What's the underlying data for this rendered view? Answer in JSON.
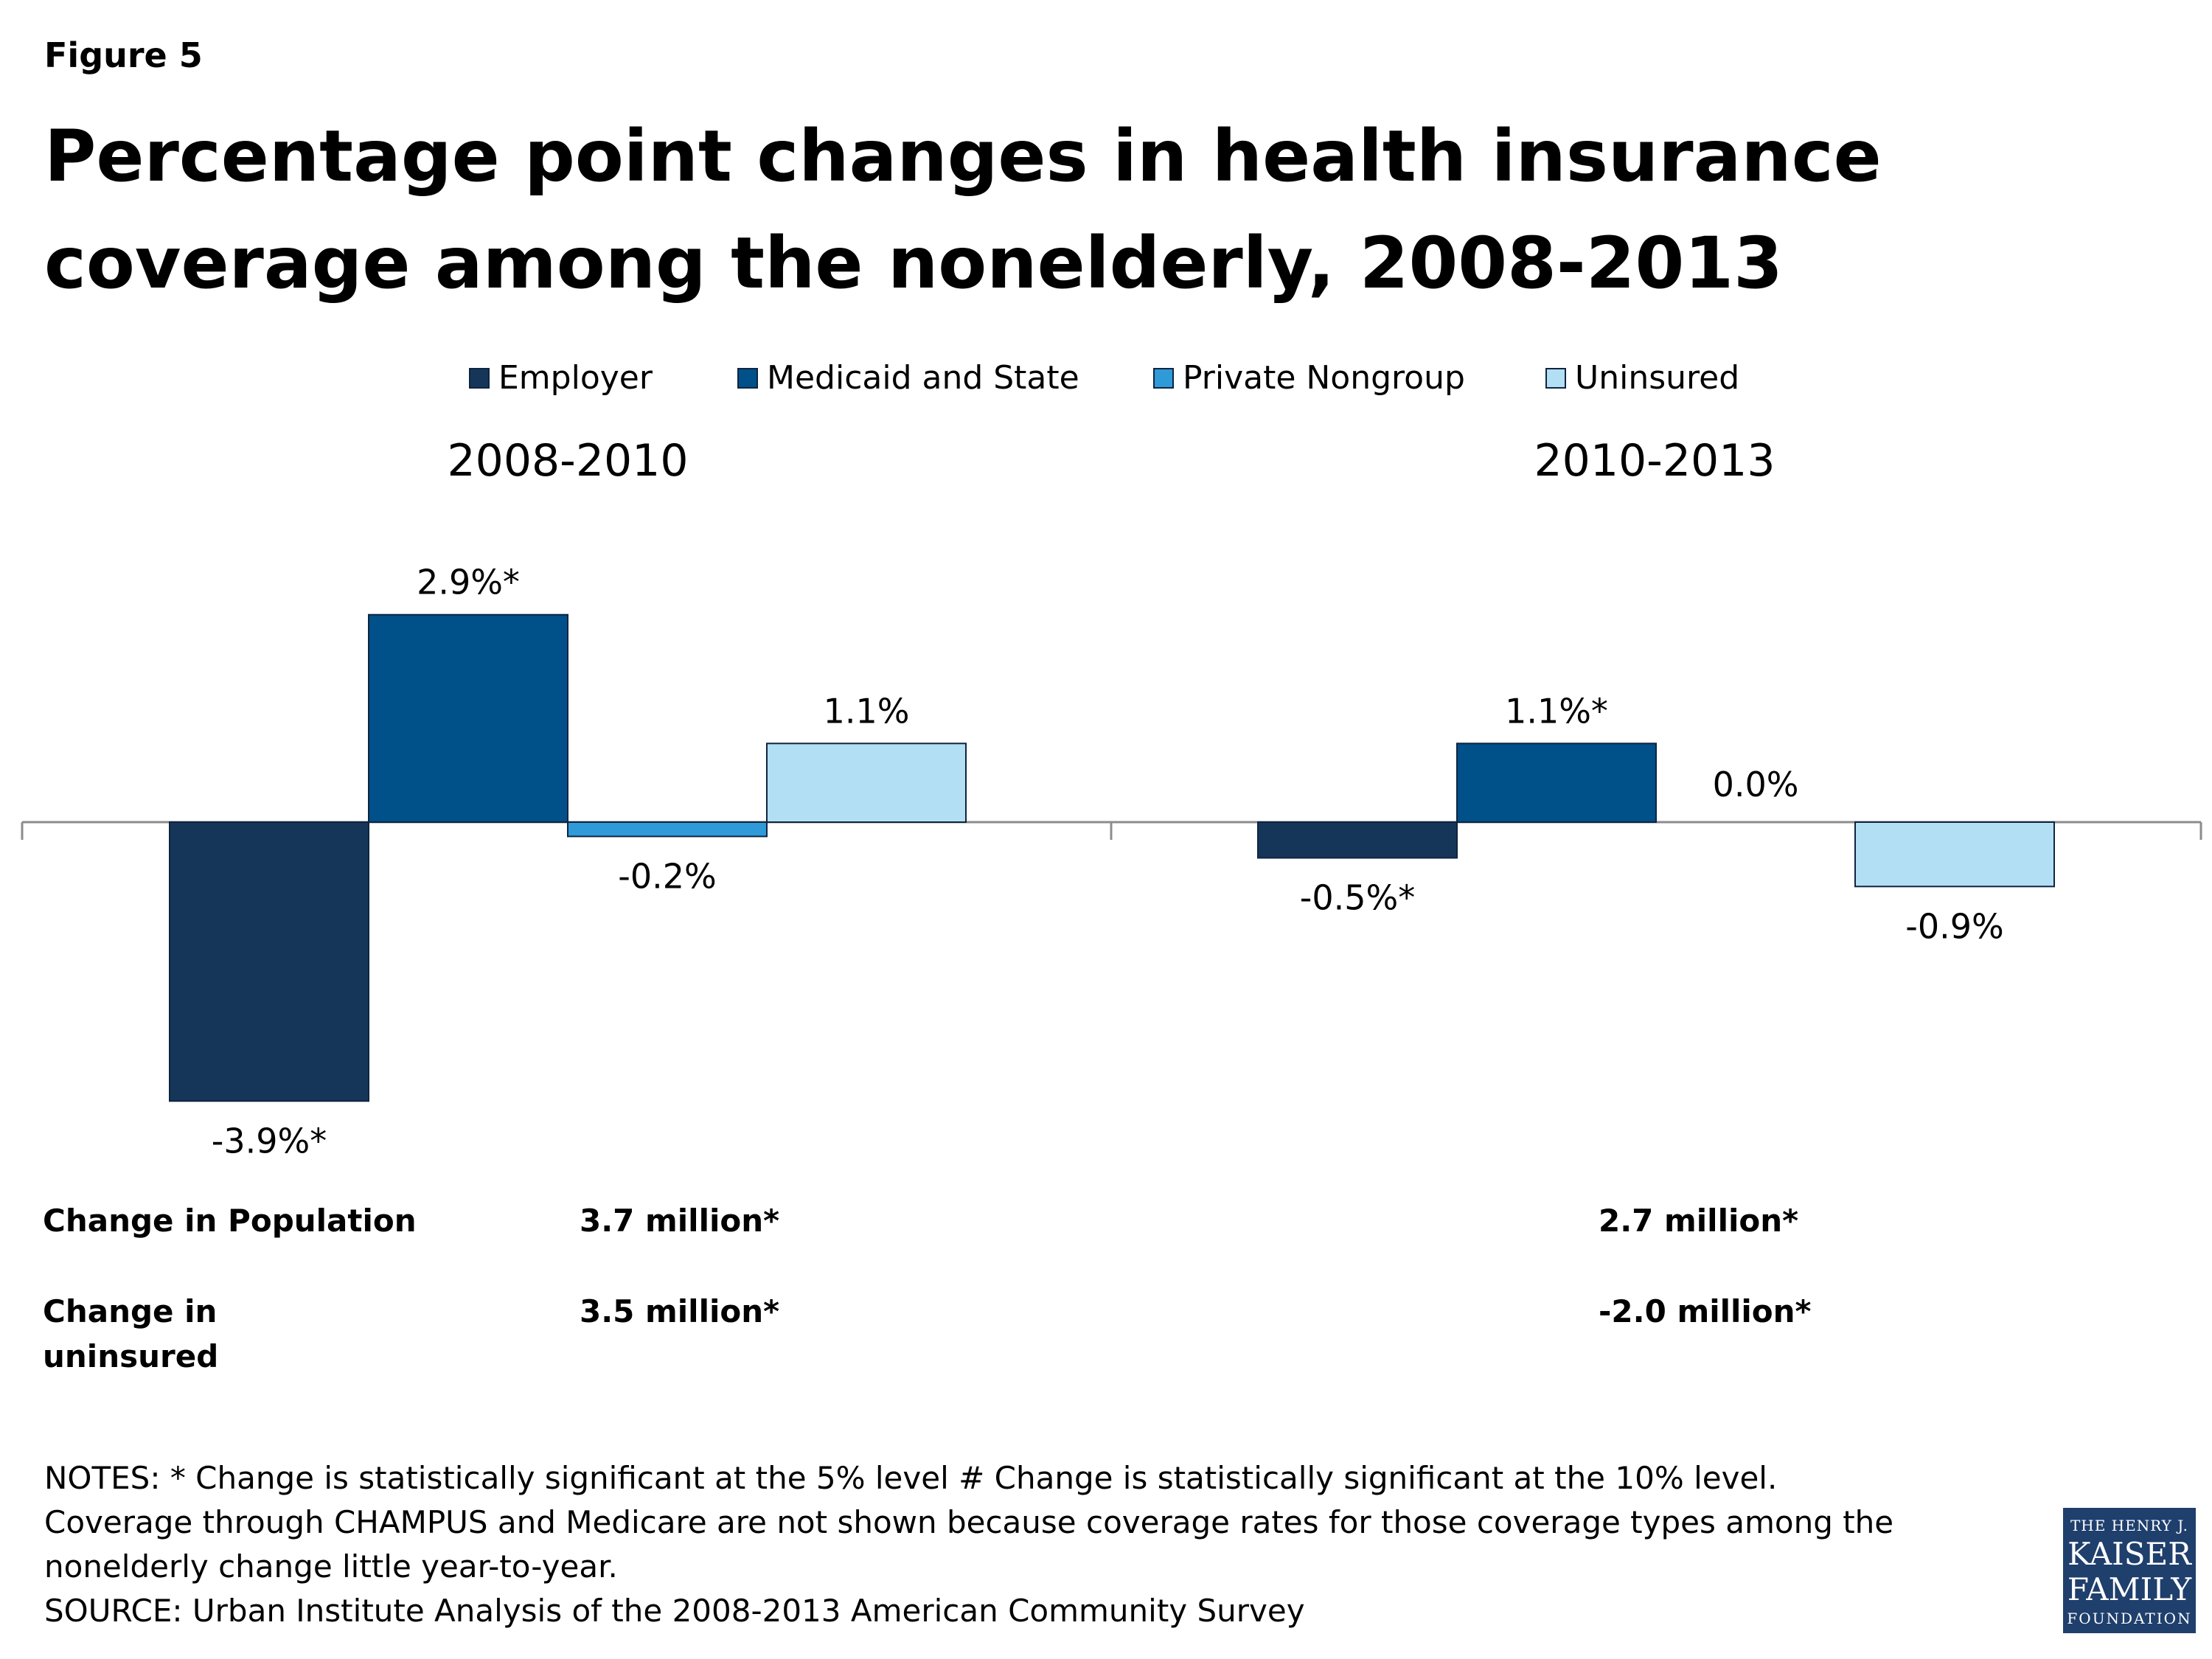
{
  "figure_label": "Figure 5",
  "title": "Percentage point changes in health insurance coverage among the nonelderly, 2008-2013",
  "colors": {
    "employer": "#163659",
    "medicaid": "#00508a",
    "private_nongroup": "#2e9ad8",
    "uninsured": "#b3dff4",
    "outline": "#0f2440",
    "axis": "#8c8c8c"
  },
  "chart_data": {
    "type": "bar",
    "title": "Percentage point changes in health insurance coverage among the nonelderly, 2008-2013",
    "categories": [
      "2008-2010",
      "2010-2013"
    ],
    "series": [
      {
        "name": "Employer",
        "values": [
          -3.9,
          -0.5
        ],
        "labels": [
          "-3.9%*",
          "-0.5%*"
        ]
      },
      {
        "name": "Medicaid and State",
        "values": [
          2.9,
          1.1
        ],
        "labels": [
          "2.9%*",
          "1.1%*"
        ]
      },
      {
        "name": "Private Nongroup",
        "values": [
          -0.2,
          0.0
        ],
        "labels": [
          "-0.2%",
          "0.0%"
        ]
      },
      {
        "name": "Uninsured",
        "values": [
          1.1,
          -0.9
        ],
        "labels": [
          "1.1%",
          "-0.9%"
        ]
      }
    ],
    "ylim": [
      -4.5,
      4.5
    ],
    "grid": false,
    "legend_position": "top"
  },
  "stats": {
    "change_population_label": "Change in Population",
    "change_population_values": [
      "3.7 million*",
      "2.7 million*"
    ],
    "change_uninsured_label": "Change in uninsured",
    "change_uninsured_values": [
      "3.5 million*",
      "-2.0 million*"
    ]
  },
  "notes": {
    "line1": "NOTES: * Change is statistically significant at the 5% level # Change is statistically significant at the 10% level.",
    "line2": "Coverage through CHAMPUS and Medicare are not shown because coverage rates for those coverage types among the nonelderly change little year-to-year.",
    "line3": "SOURCE: Urban Institute Analysis of the 2008-2013 American Community Survey"
  },
  "logo": {
    "top": "THE HENRY J.",
    "line1": "KAISER",
    "line2": "FAMILY",
    "bottom": "FOUNDATION"
  }
}
